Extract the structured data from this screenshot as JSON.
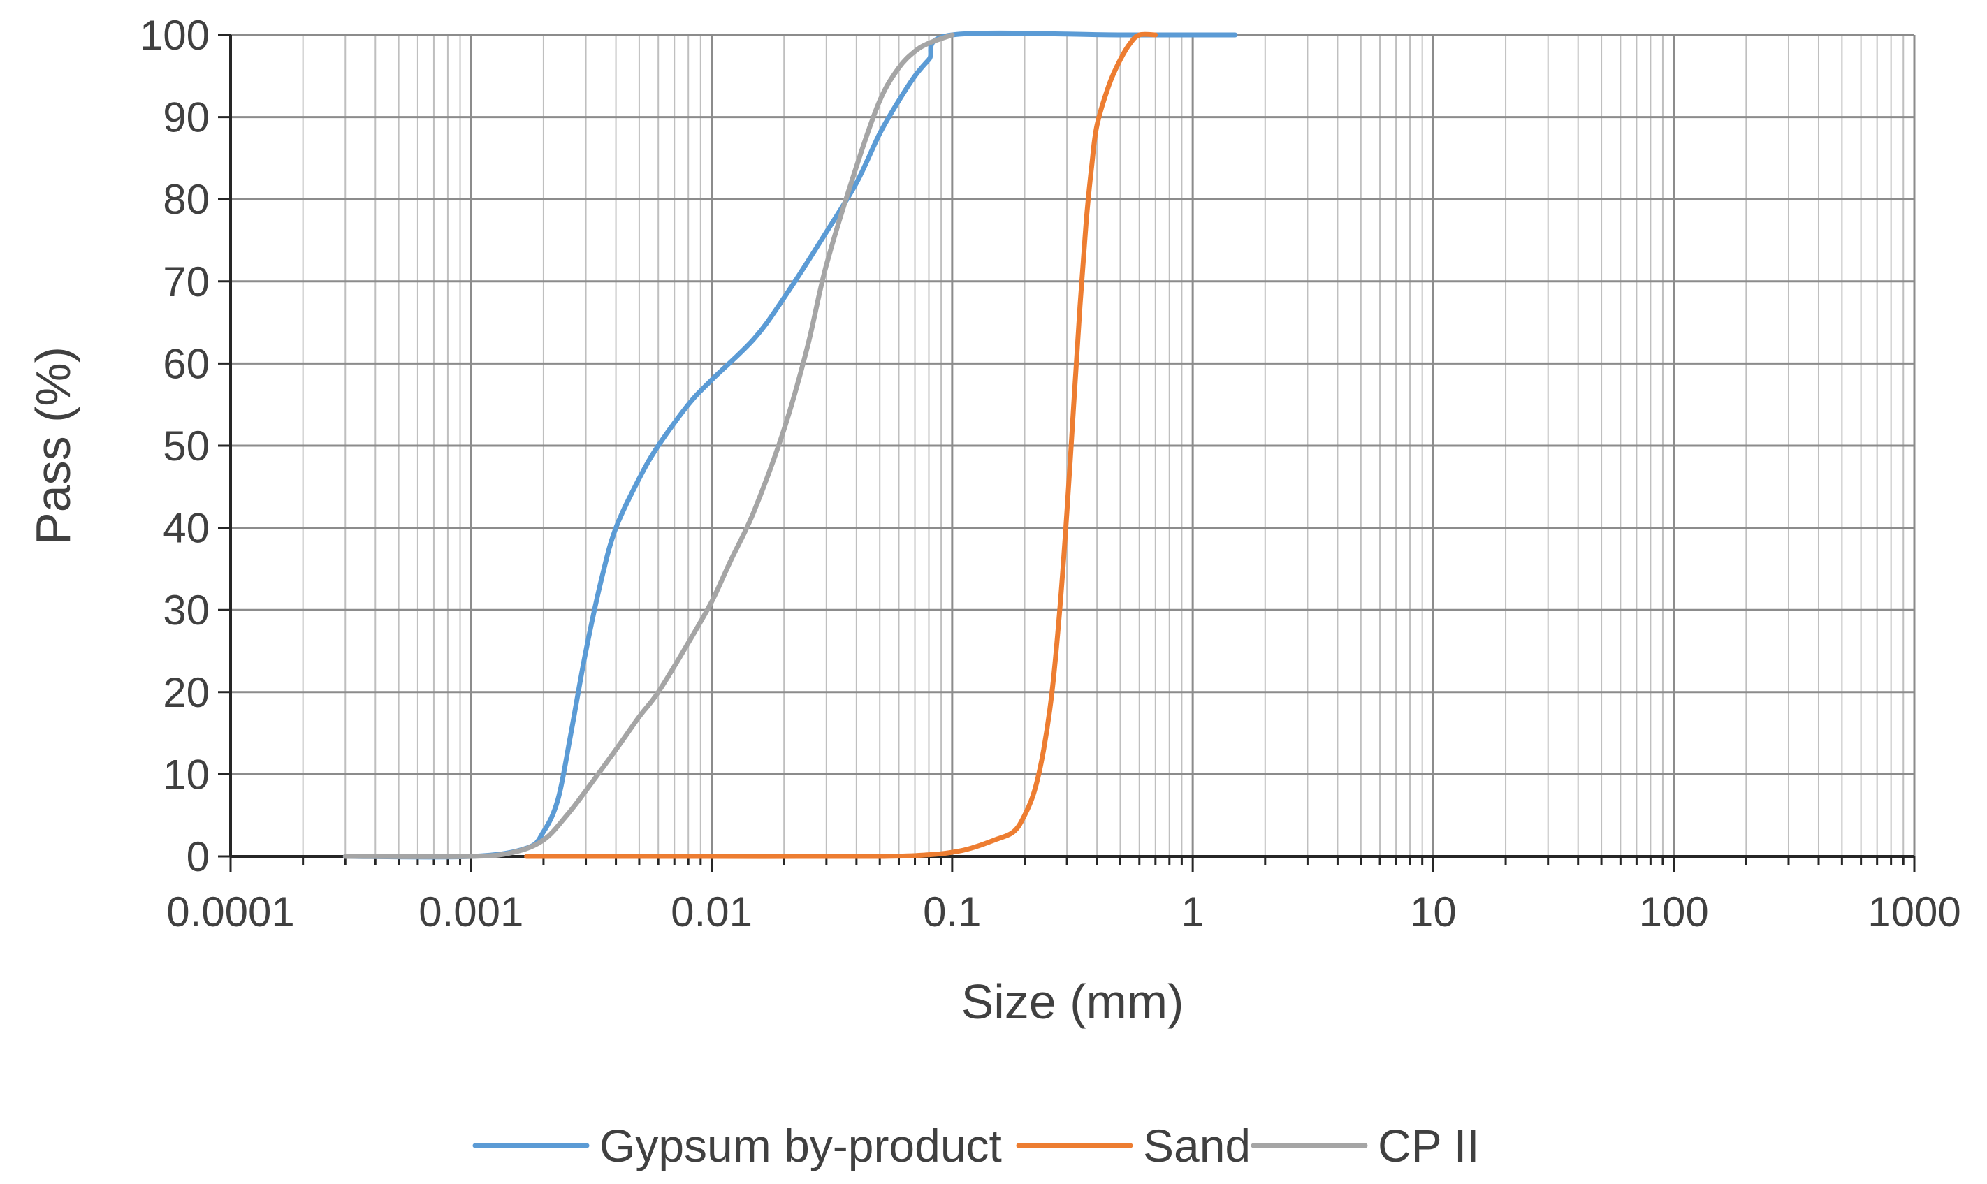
{
  "chart_data": {
    "type": "line",
    "title": "",
    "xlabel": "Size (mm)",
    "ylabel": "Pass (%)",
    "x_scale": "log",
    "xlim": [
      0.0001,
      1000
    ],
    "ylim": [
      0,
      100
    ],
    "x_ticks": [
      0.0001,
      0.001,
      0.01,
      0.1,
      1,
      10,
      100,
      1000
    ],
    "x_tick_labels": [
      "0.0001",
      "0.001",
      "0.01",
      "0.1",
      "1",
      "10",
      "100",
      "1000"
    ],
    "y_ticks": [
      0,
      10,
      20,
      30,
      40,
      50,
      60,
      70,
      80,
      90,
      100
    ],
    "y_tick_labels": [
      "0",
      "10",
      "20",
      "30",
      "40",
      "50",
      "60",
      "70",
      "80",
      "90",
      "100"
    ],
    "grid": "major and minor",
    "legend_position": "bottom",
    "series": [
      {
        "name": "Gypsum by-product",
        "color": "#5b9bd5",
        "x": [
          0.0003,
          0.001,
          0.0017,
          0.002,
          0.0023,
          0.0026,
          0.003,
          0.0035,
          0.004,
          0.005,
          0.006,
          0.008,
          0.01,
          0.015,
          0.02,
          0.03,
          0.04,
          0.05,
          0.06,
          0.07,
          0.08,
          0.1,
          0.5,
          1.5
        ],
        "y": [
          0,
          0,
          1,
          3,
          7,
          15,
          25,
          34,
          40,
          46,
          50,
          55,
          58,
          63,
          68,
          76,
          82,
          88,
          92,
          95,
          97,
          100,
          100,
          100
        ]
      },
      {
        "name": "Sand",
        "color": "#ed7d31",
        "x": [
          0.0017,
          0.01,
          0.05,
          0.08,
          0.1,
          0.12,
          0.15,
          0.18,
          0.2,
          0.22,
          0.24,
          0.26,
          0.28,
          0.3,
          0.32,
          0.34,
          0.36,
          0.38,
          0.4,
          0.45,
          0.5,
          0.55,
          0.6,
          0.7
        ],
        "y": [
          0,
          0,
          0,
          0.2,
          0.5,
          1,
          2,
          3,
          5,
          8,
          13,
          20,
          30,
          42,
          55,
          67,
          77,
          84,
          89,
          94,
          97,
          99,
          100,
          100
        ]
      },
      {
        "name": "CP II",
        "color": "#a5a5a5",
        "x": [
          0.0003,
          0.001,
          0.0015,
          0.002,
          0.0025,
          0.003,
          0.004,
          0.005,
          0.006,
          0.008,
          0.01,
          0.012,
          0.015,
          0.02,
          0.025,
          0.03,
          0.04,
          0.05,
          0.06,
          0.07,
          0.08,
          0.1
        ],
        "y": [
          0,
          0,
          0.5,
          2,
          5,
          8,
          13,
          17,
          20,
          26,
          31,
          36,
          42,
          52,
          62,
          72,
          84,
          92,
          96,
          98,
          99,
          100
        ]
      }
    ]
  }
}
